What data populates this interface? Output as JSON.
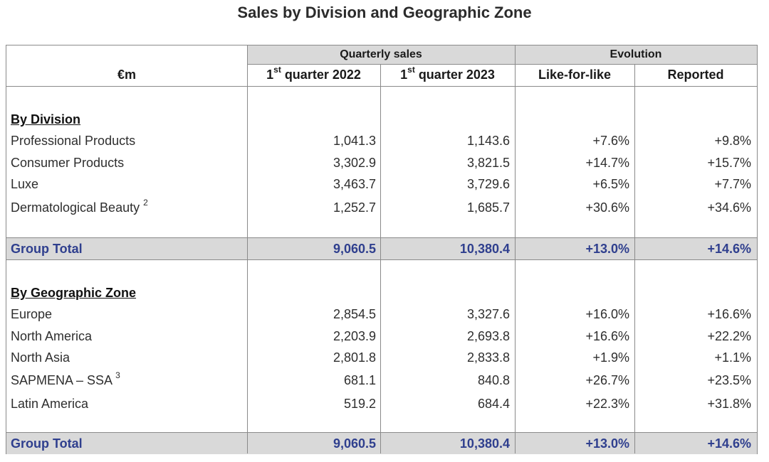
{
  "title": "Sales by Division and Geographic Zone",
  "header": {
    "group_quarterly": "Quarterly sales",
    "group_evolution": "Evolution",
    "unit": "€m",
    "col_q2022_prefix": "1",
    "col_q2022_sup": "st",
    "col_q2022_suffix": " quarter 2022",
    "col_q2023_prefix": "1",
    "col_q2023_sup": "st",
    "col_q2023_suffix": " quarter 2023",
    "col_lfl": "Like-for-like",
    "col_reported": "Reported"
  },
  "division": {
    "heading": "By Division",
    "rows": [
      {
        "label": "Professional Products",
        "sup": "",
        "q2022": "1,041.3",
        "q2023": "1,143.6",
        "lfl": "+7.6%",
        "reported": "+9.8%"
      },
      {
        "label": "Consumer Products",
        "sup": "",
        "q2022": "3,302.9",
        "q2023": "3,821.5",
        "lfl": "+14.7%",
        "reported": "+15.7%"
      },
      {
        "label": "Luxe",
        "sup": "",
        "q2022": "3,463.7",
        "q2023": "3,729.6",
        "lfl": "+6.5%",
        "reported": "+7.7%"
      },
      {
        "label": "Dermatological Beauty ",
        "sup": "2",
        "q2022": "1,252.7",
        "q2023": "1,685.7",
        "lfl": "+30.6%",
        "reported": "+34.6%"
      }
    ],
    "total": {
      "label": "Group Total",
      "q2022": "9,060.5",
      "q2023": "10,380.4",
      "lfl": "+13.0%",
      "reported": "+14.6%"
    }
  },
  "zone": {
    "heading": "By Geographic Zone",
    "rows": [
      {
        "label": "Europe",
        "sup": "",
        "q2022": "2,854.5",
        "q2023": "3,327.6",
        "lfl": "+16.0%",
        "reported": "+16.6%"
      },
      {
        "label": "North America",
        "sup": "",
        "q2022": "2,203.9",
        "q2023": "2,693.8",
        "lfl": "+16.6%",
        "reported": "+22.2%"
      },
      {
        "label": "North Asia",
        "sup": "",
        "q2022": "2,801.8",
        "q2023": "2,833.8",
        "lfl": "+1.9%",
        "reported": "+1.1%"
      },
      {
        "label": "SAPMENA – SSA ",
        "sup": "3",
        "q2022": "681.1",
        "q2023": "840.8",
        "lfl": "+26.7%",
        "reported": "+23.5%"
      },
      {
        "label": "Latin America",
        "sup": "",
        "q2022": "519.2",
        "q2023": "684.4",
        "lfl": "+22.3%",
        "reported": "+31.8%"
      }
    ],
    "total": {
      "label": "Group Total",
      "q2022": "9,060.5",
      "q2023": "10,380.4",
      "lfl": "+13.0%",
      "reported": "+14.6%"
    }
  },
  "colors": {
    "header_fill": "#d9d9d9",
    "total_text": "#2f3f8e",
    "border": "#8a8a8a"
  }
}
